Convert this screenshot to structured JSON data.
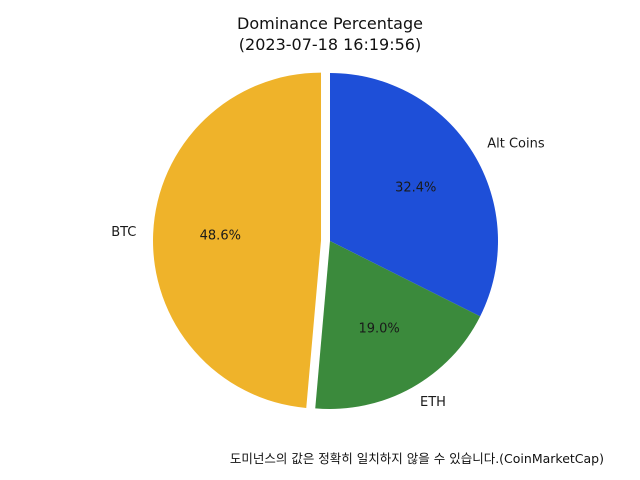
{
  "chart_data": {
    "type": "pie",
    "title": "Dominance Percentage",
    "subtitle": "(2023-07-18 16:19:56)",
    "categories": [
      "Alt Coins",
      "ETH",
      "BTC"
    ],
    "values": [
      32.4,
      19.0,
      48.6
    ],
    "value_labels": [
      "32.4%",
      "19.0%",
      "48.6%"
    ],
    "colors": [
      "#1e4fd8",
      "#3b8a3c",
      "#efb32a"
    ],
    "start_angle": "top (12 o'clock)",
    "direction": "clockwise",
    "exploded": [
      "BTC"
    ]
  },
  "footnote": "도미넌스의 값은 정확히 일치하지 않을 수 있습니다.(CoinMarketCap)"
}
